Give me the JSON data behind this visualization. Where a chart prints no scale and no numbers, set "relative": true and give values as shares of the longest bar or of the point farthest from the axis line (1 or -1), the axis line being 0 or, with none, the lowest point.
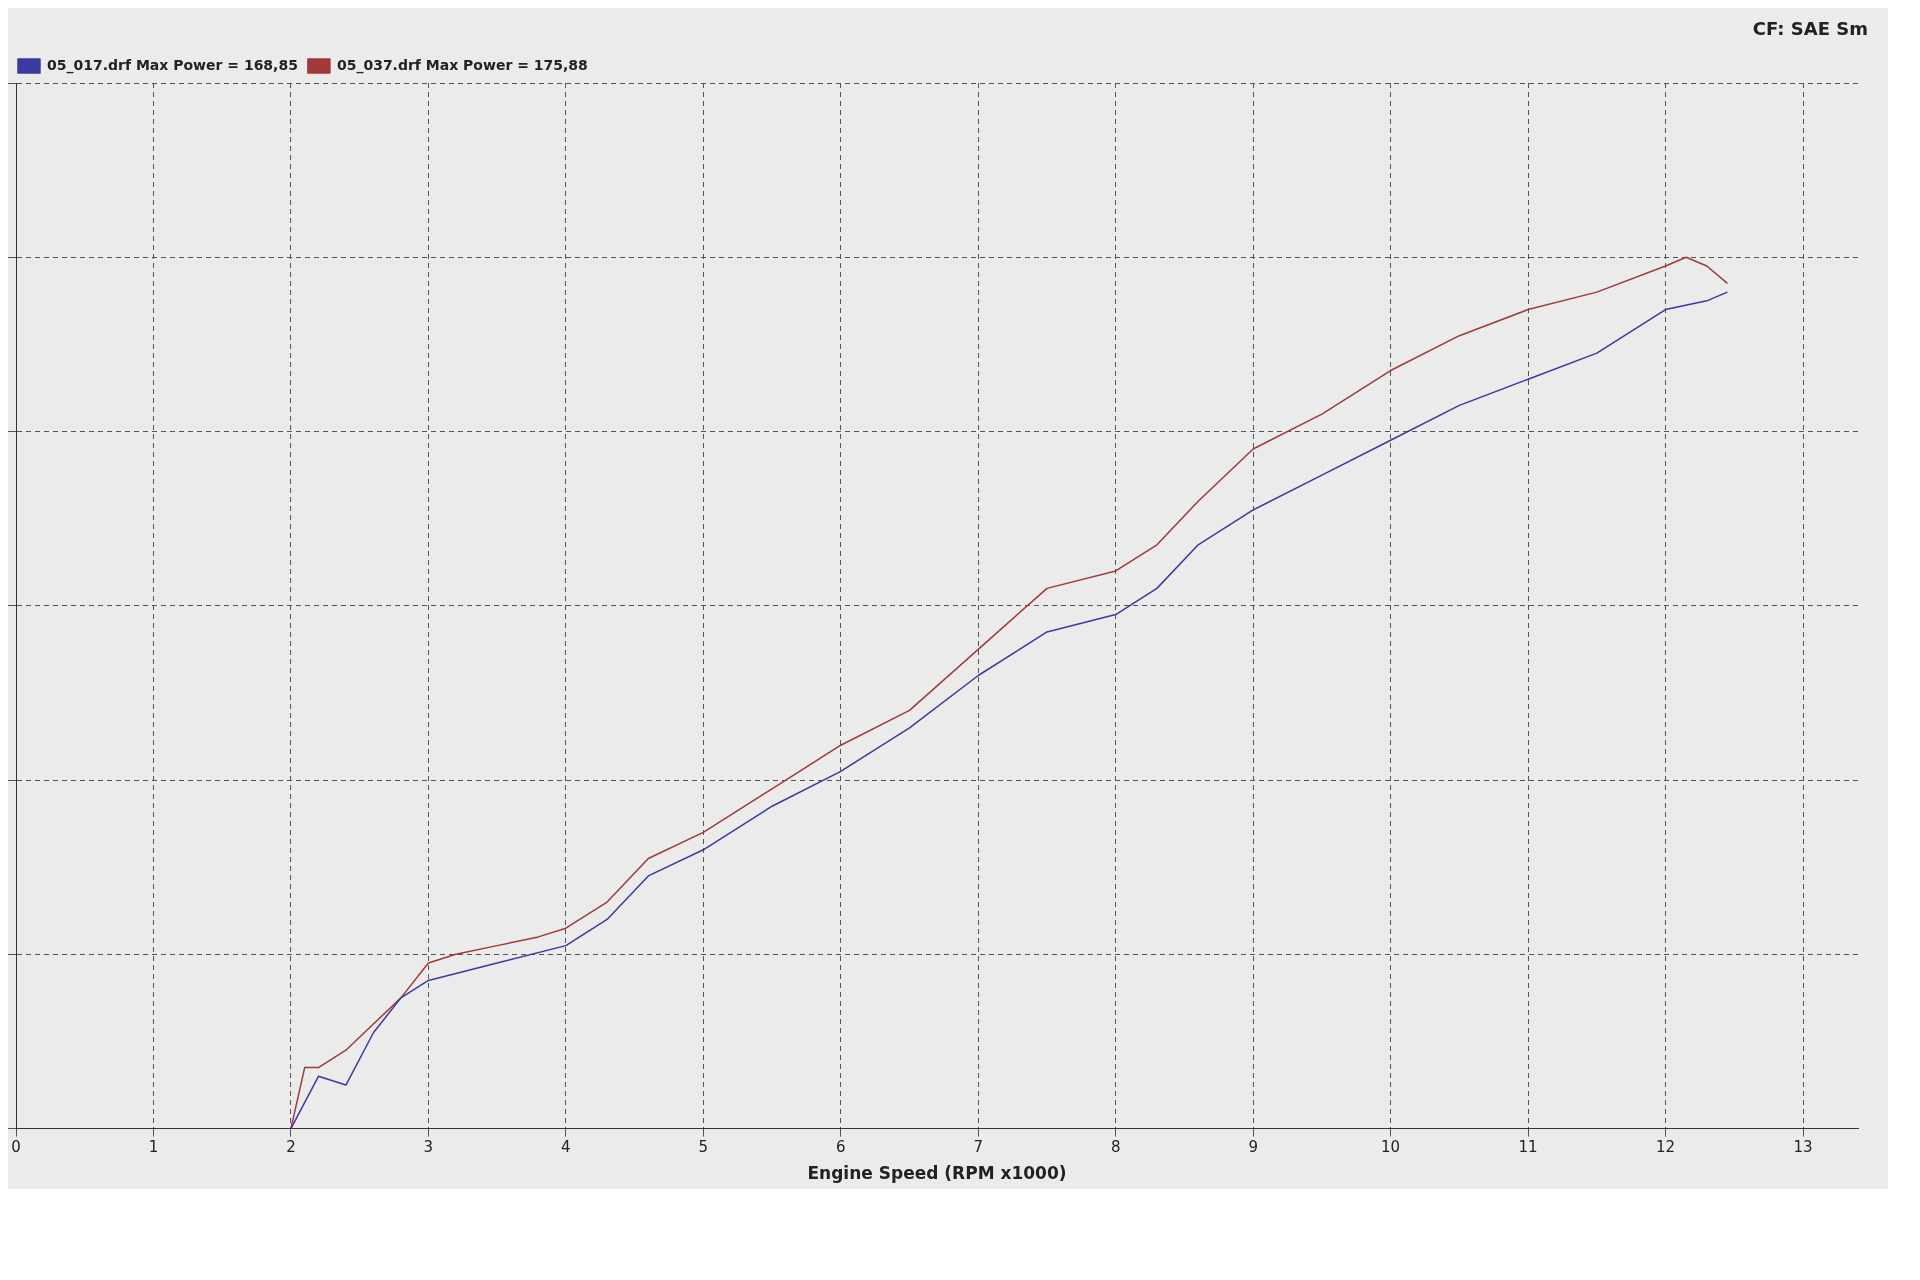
{
  "chart_data": {
    "type": "line",
    "xlabel": "Engine Speed (RPM x1000)",
    "annotations": [
      "CF: SAE Sm"
    ],
    "relative": true,
    "xlim": [
      0,
      13.4
    ],
    "xticks": [
      0,
      1,
      2,
      3,
      4,
      5,
      6,
      7,
      8,
      9,
      10,
      11,
      12,
      13
    ],
    "grid": true,
    "legend": "top left",
    "line_style": "solid",
    "marker": "none",
    "series": [
      {
        "name": "05_017.drf Max Power = 168,85",
        "color": "#3a3aa0",
        "x": [
          2,
          2.2,
          2.4,
          2.6,
          2.8,
          3,
          3.5,
          4,
          4.3,
          4.6,
          5,
          5.5,
          6,
          6.5,
          7,
          7.5,
          8,
          8.3,
          8.6,
          9,
          9.5,
          10,
          10.5,
          11,
          11.5,
          12,
          12.3,
          12.45
        ],
        "values": [
          0,
          0.06,
          0.05,
          0.11,
          0.15,
          0.17,
          0.19,
          0.21,
          0.24,
          0.29,
          0.32,
          0.37,
          0.41,
          0.46,
          0.52,
          0.57,
          0.59,
          0.62,
          0.67,
          0.71,
          0.75,
          0.79,
          0.83,
          0.86,
          0.89,
          0.94,
          0.95,
          0.96
        ]
      },
      {
        "name": "05_037.drf Max Power = 175,88",
        "color": "#a03a3a",
        "x": [
          2,
          2.1,
          2.2,
          2.4,
          2.6,
          2.8,
          3,
          3.2,
          3.5,
          3.8,
          4,
          4.3,
          4.6,
          5,
          5.5,
          6,
          6.5,
          7,
          7.5,
          8,
          8.3,
          8.6,
          9,
          9.5,
          10,
          10.5,
          11,
          11.5,
          12,
          12.15,
          12.3,
          12.45
        ],
        "values": [
          0,
          0.07,
          0.07,
          0.09,
          0.12,
          0.15,
          0.19,
          0.2,
          0.21,
          0.22,
          0.23,
          0.26,
          0.31,
          0.34,
          0.39,
          0.44,
          0.48,
          0.55,
          0.62,
          0.64,
          0.67,
          0.72,
          0.78,
          0.82,
          0.87,
          0.91,
          0.94,
          0.96,
          0.99,
          1,
          0.99,
          0.97
        ]
      }
    ]
  }
}
